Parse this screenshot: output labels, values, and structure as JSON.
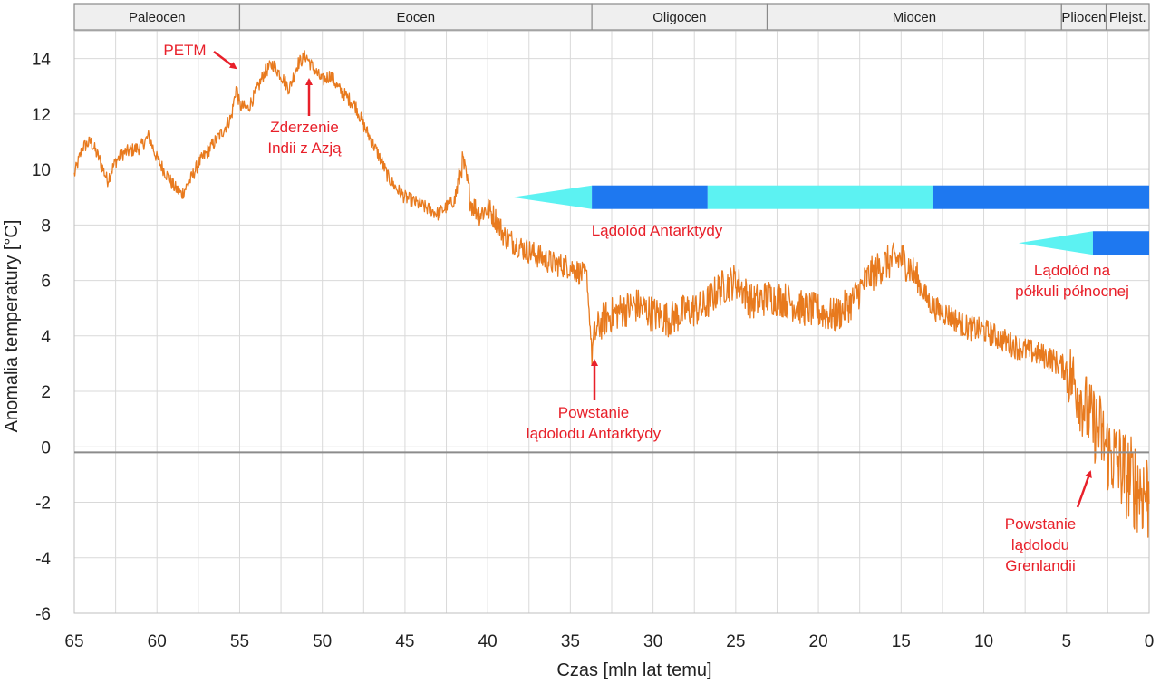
{
  "chart_data": {
    "type": "line",
    "title": "",
    "xlabel": "Czas [mln lat temu]",
    "ylabel": "Anomalia temperatury [°C]",
    "xlim": [
      65,
      0
    ],
    "ylim": [
      -6,
      15
    ],
    "x_ticks": [
      65,
      60,
      55,
      50,
      45,
      40,
      35,
      30,
      25,
      20,
      15,
      10,
      5,
      0
    ],
    "y_ticks": [
      -6,
      -4,
      -2,
      0,
      2,
      4,
      6,
      8,
      10,
      12,
      14
    ],
    "grid": true,
    "line_color": "#e87a1e",
    "series": [
      {
        "x": [
          65,
          64.5,
          64,
          63.5,
          63,
          62.5,
          62,
          61,
          60.5,
          60,
          59.5,
          59,
          58.5,
          58,
          57.5,
          57,
          56.5,
          56,
          55.5,
          55.2,
          55,
          54.5,
          54,
          53.5,
          53,
          52.5,
          52,
          51.5,
          51,
          50.5,
          50,
          49.5,
          49,
          48.5,
          48,
          47.5,
          47,
          46.5,
          46,
          45.5,
          45,
          44,
          43,
          42,
          41.5,
          41,
          40.5,
          40,
          39.5,
          39,
          38,
          37,
          36,
          35,
          34,
          33.7,
          33.5,
          33,
          32,
          31,
          30,
          29,
          28,
          27,
          26,
          25,
          24,
          23,
          22,
          21,
          20,
          19,
          18,
          17,
          16,
          15,
          14.5,
          14,
          13.5,
          13,
          12,
          11,
          10,
          9,
          8,
          7,
          6,
          5,
          4.5,
          4,
          3.5,
          3,
          2.5,
          2,
          1.5,
          1,
          0.5,
          0
        ],
        "y": [
          9.8,
          10.8,
          11,
          10.4,
          9.6,
          10.3,
          10.6,
          10.8,
          11.2,
          10.4,
          9.9,
          9.4,
          9.1,
          9.6,
          10.2,
          10.6,
          11,
          11.4,
          11.9,
          13,
          12.3,
          12.2,
          12.8,
          13.5,
          13.8,
          13.4,
          12.9,
          13.8,
          14.1,
          13.6,
          13.2,
          13.4,
          12.9,
          12.6,
          12.3,
          11.6,
          11,
          10.4,
          9.7,
          9.3,
          9,
          8.7,
          8.4,
          8.9,
          10.3,
          8.8,
          8.4,
          8.6,
          8.2,
          7.6,
          7.2,
          6.9,
          6.6,
          6.5,
          6.1,
          3.4,
          4.1,
          4.6,
          4.9,
          5.1,
          4.8,
          4.6,
          4.9,
          5,
          5.7,
          6,
          5.2,
          5.4,
          5.3,
          5,
          4.9,
          4.7,
          5.2,
          6.1,
          6.6,
          6.8,
          6.5,
          6,
          5.4,
          5,
          4.7,
          4.3,
          4.2,
          3.9,
          3.6,
          3.4,
          3.2,
          2.8,
          2.3,
          1.6,
          0.9,
          0.6,
          -0.2,
          -0.5,
          -0.9,
          -1.3,
          -1.5,
          -1.8
        ]
      }
    ],
    "epochs": [
      {
        "name": "Paleocen",
        "start": 65,
        "end": 55
      },
      {
        "name": "Eocen",
        "start": 55,
        "end": 33.7
      },
      {
        "name": "Oligocen",
        "start": 33.7,
        "end": 23.1
      },
      {
        "name": "Miocen",
        "start": 23.1,
        "end": 5.3
      },
      {
        "name": "Pliocen",
        "start": 5.3,
        "end": 2.6
      },
      {
        "name": "Plejst.",
        "start": 2.6,
        "end": 0
      }
    ],
    "ice_bars": [
      {
        "y": 9.0,
        "segments": [
          {
            "type": "taper",
            "start": 38.5,
            "end": 33.7,
            "color": "#5cf2f2"
          },
          {
            "type": "rect",
            "start": 33.7,
            "end": 26.7,
            "color": "#1e78f0"
          },
          {
            "type": "rect",
            "start": 26.7,
            "end": 13.1,
            "color": "#5cf2f2"
          },
          {
            "type": "rect",
            "start": 13.1,
            "end": 0,
            "color": "#1e78f0"
          }
        ]
      },
      {
        "y": 7.35,
        "segments": [
          {
            "type": "taper",
            "start": 7.9,
            "end": 3.4,
            "color": "#5cf2f2"
          },
          {
            "type": "rect",
            "start": 3.4,
            "end": 0,
            "color": "#1e78f0"
          }
        ]
      }
    ],
    "annotations": [
      {
        "id": "petm",
        "lines": [
          "PETM"
        ]
      },
      {
        "id": "india",
        "lines": [
          "Zderzenie",
          "Indii z Azją"
        ]
      },
      {
        "id": "antarctic-ice",
        "lines": [
          "Lądolód Antarktydy"
        ]
      },
      {
        "id": "northern-ice",
        "lines": [
          "Lądolód na",
          "półkuli północnej"
        ]
      },
      {
        "id": "antarctic-origin",
        "lines": [
          "Powstanie",
          "lądolodu Antarktydy"
        ]
      },
      {
        "id": "greenland-origin",
        "lines": [
          "Powstanie",
          "lądolodu",
          "Grenlandii"
        ]
      }
    ]
  }
}
